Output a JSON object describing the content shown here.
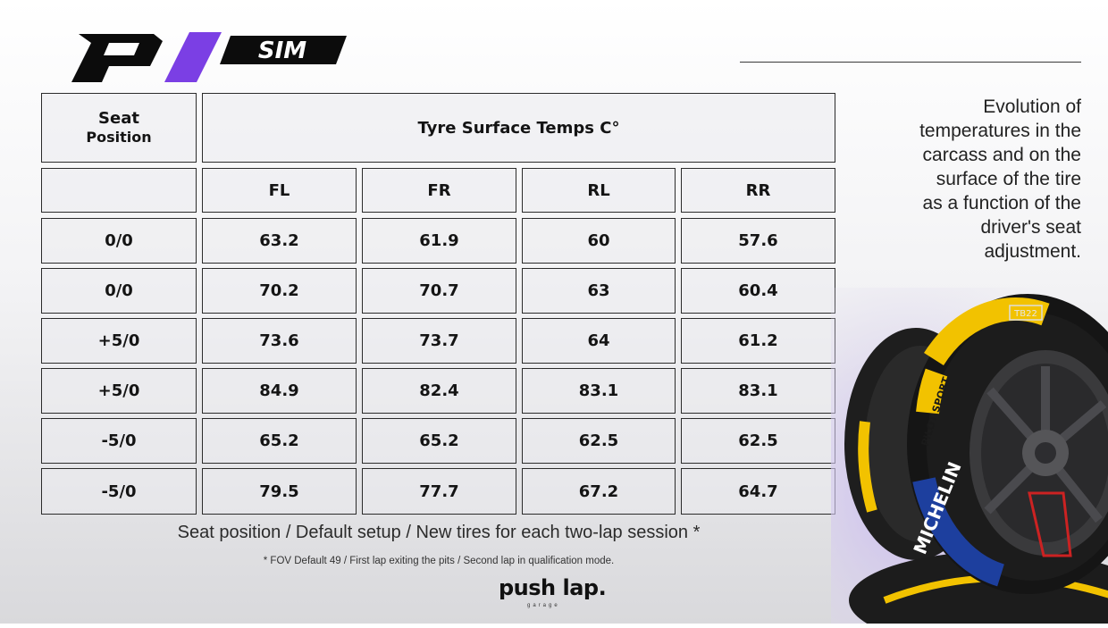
{
  "logo": {
    "mark": "P1",
    "wordmark": "SIM",
    "accent_color": "#7b3fe4"
  },
  "description": [
    "Evolution of",
    "temperatures in the",
    "carcass and on the",
    "surface of the tire",
    "as a function of the",
    "driver's seat",
    "adjustment."
  ],
  "table": {
    "seat_header_line1": "Seat",
    "seat_header_line2": "Position",
    "group_header": "Tyre Surface Temps C°",
    "columns": [
      "FL",
      "FR",
      "RL",
      "RR"
    ],
    "rows": [
      {
        "seat": "0/0",
        "values": [
          "63.2",
          "61.9",
          "60",
          "57.6"
        ]
      },
      {
        "seat": "0/0",
        "values": [
          "70.2",
          "70.7",
          "63",
          "60.4"
        ]
      },
      {
        "seat": "+5/0",
        "values": [
          "73.6",
          "73.7",
          "64",
          "61.2"
        ]
      },
      {
        "seat": "+5/0",
        "values": [
          "84.9",
          "82.4",
          "83.1",
          "83.1"
        ]
      },
      {
        "seat": "-5/0",
        "values": [
          "65.2",
          "65.2",
          "62.5",
          "62.5"
        ]
      },
      {
        "seat": "-5/0",
        "values": [
          "79.5",
          "77.7",
          "67.2",
          "64.7"
        ]
      }
    ]
  },
  "caption": "Seat position / Default setup / New tires for each two-lap session *",
  "footnote": "* FOV Default 49 / First lap exiting the pits / Second lap in qualification mode.",
  "brand": {
    "name": "push lap",
    "sub": "garage"
  },
  "tyre_image": {
    "sidewall_text": "MICHELIN",
    "shoulder_text": "PILOT SPORT",
    "tag": "TB22",
    "band_color": "#f2c200",
    "blue": "#1d3f9e"
  }
}
